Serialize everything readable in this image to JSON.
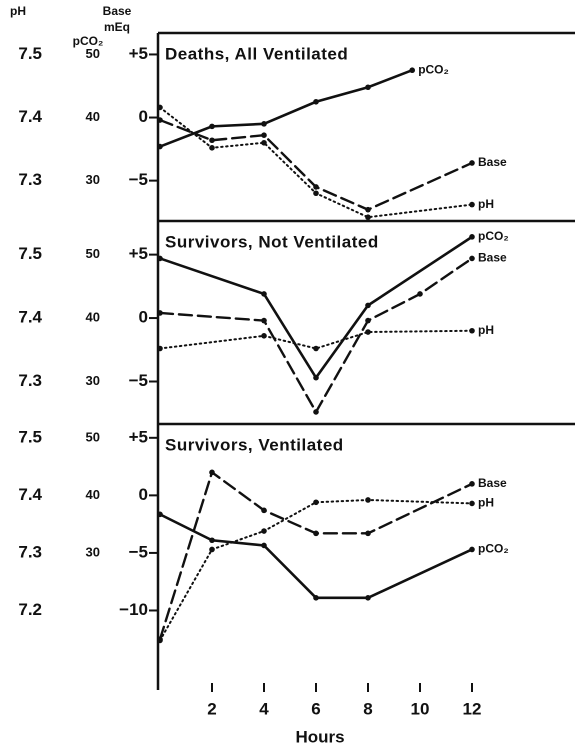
{
  "chart_data": [
    {
      "type": "line",
      "title": "Deaths, All Ventilated",
      "y_label": "pH",
      "y2_label": "pCO₂",
      "y3_label": [
        "Base",
        "mEq"
      ],
      "x_label": "Hours",
      "xlim": [
        0,
        16
      ],
      "xticks": [
        2,
        4,
        6,
        8,
        10,
        12
      ],
      "ylim": [
        7.236,
        7.534
      ],
      "yticks": [
        7.5,
        7.4,
        7.3
      ],
      "y2lim": [
        23.6,
        53.4
      ],
      "y2ticks": [
        50,
        40,
        30
      ],
      "y3lim": [
        -8.2,
        6.7
      ],
      "y3ticks": [
        {
          "value": 5,
          "label": "+5"
        },
        0,
        {
          "value": -5,
          "label": "−5"
        }
      ],
      "series": [
        {
          "name": "pCO₂",
          "axis": "y2",
          "dash": "solid",
          "color": "#111",
          "x": [
            0,
            2,
            4,
            6,
            8,
            9.7
          ],
          "values": [
            35.4,
            38.6,
            39,
            42.5,
            44.8,
            47.5
          ]
        },
        {
          "name": "Base",
          "axis": "y3",
          "dash": "dashed",
          "color": "#111",
          "x": [
            0,
            2,
            4,
            6,
            8,
            12
          ],
          "values": [
            -0.2,
            -1.8,
            -1.4,
            -5.5,
            -7.3,
            -3.6
          ]
        },
        {
          "name": "pH",
          "axis": "y",
          "dash": "dotted",
          "color": "#111",
          "x": [
            0,
            2,
            4,
            6,
            8,
            12
          ],
          "values": [
            7.416,
            7.352,
            7.36,
            7.28,
            7.242,
            7.262
          ]
        }
      ]
    },
    {
      "type": "line",
      "title": "Survivors, Not Ventilated",
      "ylim": [
        7.233,
        7.553
      ],
      "yticks": [
        7.5,
        7.4,
        7.3
      ],
      "y2lim": [
        23.3,
        55.3
      ],
      "y2ticks": [
        50,
        40,
        30
      ],
      "y3lim": [
        -8.35,
        7.65
      ],
      "y3ticks": [
        {
          "value": 5,
          "label": "+5"
        },
        0,
        {
          "value": -5,
          "label": "−5"
        }
      ],
      "series": [
        {
          "name": "pCO₂",
          "axis": "y2",
          "dash": "solid",
          "color": "#111",
          "x": [
            0,
            4,
            6,
            8,
            12
          ],
          "values": [
            49.4,
            43.8,
            30.6,
            42,
            52.8
          ]
        },
        {
          "name": "Base",
          "axis": "y3",
          "dash": "dashed",
          "color": "#111",
          "x": [
            0,
            4,
            6,
            8,
            10,
            12
          ],
          "values": [
            0.4,
            -0.2,
            -7.4,
            -0.2,
            1.9,
            4.7
          ]
        },
        {
          "name": "pH",
          "axis": "y",
          "dash": "dotted",
          "color": "#111",
          "x": [
            0,
            4,
            6,
            8,
            12
          ],
          "values": [
            7.352,
            7.372,
            7.352,
            7.378,
            7.38
          ]
        }
      ]
    },
    {
      "type": "line",
      "title": "Survivors, Ventilated",
      "ylim": [
        7.074,
        7.524
      ],
      "yticks": [
        7.5,
        7.4,
        7.3,
        7.2
      ],
      "y2lim": [
        7.4,
        52.4
      ],
      "y2ticks": [
        50,
        40,
        30
      ],
      "y3lim": [
        -16.3,
        6.2
      ],
      "y3ticks": [
        {
          "value": 5,
          "label": "+5"
        },
        0,
        {
          "value": -5,
          "label": "−5"
        },
        {
          "value": -10,
          "label": "−10"
        }
      ],
      "series": [
        {
          "name": "Base",
          "axis": "y3",
          "dash": "dashed",
          "color": "#111",
          "x": [
            0,
            2,
            4,
            6,
            8,
            12
          ],
          "values": [
            -12.5,
            2,
            -1.3,
            -3.3,
            -3.3,
            1
          ]
        },
        {
          "name": "pH",
          "axis": "y",
          "dash": "dotted",
          "color": "#111",
          "x": [
            0,
            2,
            4,
            6,
            8,
            12
          ],
          "values": [
            7.148,
            7.306,
            7.338,
            7.388,
            7.392,
            7.386
          ]
        },
        {
          "name": "pCO₂",
          "axis": "y2",
          "dash": "solid",
          "color": "#111",
          "x": [
            0,
            2,
            4,
            6,
            8,
            12
          ],
          "values": [
            36.7,
            32.2,
            31.3,
            22.2,
            22.2,
            30.6
          ]
        }
      ]
    }
  ]
}
